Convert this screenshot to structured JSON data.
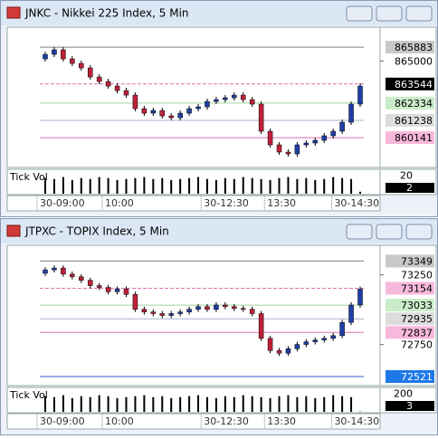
{
  "chart_data": [
    {
      "type": "candlestick",
      "title": "JNKC - Nikkei 225 Index, 5 Min",
      "open": [
        865137,
        865424,
        865711,
        865137,
        864850,
        864563,
        863989,
        863702,
        863415,
        863128,
        862841,
        861980,
        861693,
        861865,
        861521,
        861406,
        861693,
        861980,
        862095,
        862439,
        862554,
        862669,
        862841,
        862554,
        862267,
        860545,
        859684,
        859225,
        859110,
        859684,
        859799,
        859971,
        860258,
        860545,
        861119,
        862267
      ],
      "high": [
        865596,
        865883,
        865883,
        865309,
        865022,
        864735,
        864161,
        863874,
        863587,
        863300,
        863013,
        862152,
        862037,
        862037,
        861693,
        861865,
        862152,
        862267,
        862611,
        862726,
        862841,
        863013,
        863013,
        862726,
        862439,
        860717,
        859856,
        859397,
        859856,
        859971,
        860143,
        860430,
        860717,
        861291,
        862439,
        863587
      ],
      "low": [
        864965,
        865252,
        864965,
        864678,
        864391,
        863817,
        863530,
        863243,
        862956,
        862669,
        861808,
        861521,
        861521,
        861349,
        861234,
        861234,
        861521,
        861808,
        861923,
        862267,
        862382,
        862497,
        862382,
        862095,
        860373,
        859512,
        859053,
        858938,
        858938,
        859512,
        859627,
        859799,
        860086,
        860373,
        860947,
        862095
      ],
      "close": [
        865424,
        865711,
        865137,
        864850,
        864563,
        863989,
        863702,
        863415,
        863128,
        862841,
        861980,
        861693,
        861865,
        861521,
        861406,
        861693,
        861980,
        862095,
        862439,
        862554,
        862669,
        862841,
        862554,
        862267,
        860545,
        859684,
        859225,
        859110,
        859684,
        859799,
        859971,
        860258,
        860545,
        861119,
        862267,
        863415
      ],
      "up_color": "#1f3fa8",
      "down_color": "#c0203a",
      "ylim": [
        858250,
        867150
      ],
      "yticks": [
        865000
      ],
      "levels": [
        {
          "value": 865883,
          "color": "#808080",
          "label_bg": "#c8c8c8",
          "label_fg": "#000000"
        },
        {
          "value": 863544,
          "color": "#e070b0",
          "label_bg": "#000000",
          "label_fg": "#ffffff",
          "dashed": true
        },
        {
          "value": 862334,
          "color": "#a0d0a0",
          "label_bg": "#c8ecc8",
          "label_fg": "#000000"
        },
        {
          "value": 861238,
          "color": "#a8b4d0",
          "label_bg": "#dcdcdc",
          "label_fg": "#000000"
        },
        {
          "value": 860141,
          "color": "#e070b0",
          "label_bg": "#f8b8dc",
          "label_fg": "#000000"
        }
      ],
      "volume": {
        "label": "Tick Vol",
        "values": [
          16,
          15,
          17,
          14,
          16,
          15,
          17,
          16,
          14,
          15,
          16,
          17,
          15,
          16,
          14,
          15,
          16,
          17,
          15,
          14,
          16,
          15,
          17,
          16,
          15,
          14,
          16,
          17,
          15,
          16,
          14,
          15,
          17,
          16,
          15,
          2
        ],
        "ylim": [
          0,
          24
        ],
        "yticks": [
          20
        ],
        "last": 2
      },
      "x_labels": [
        "30-09:00",
        "10:00",
        "30-12:30",
        "13:30",
        "30-14:30"
      ]
    },
    {
      "type": "candlestick",
      "title": "JTPXC - TOPIX Index, 5 Min",
      "open": [
        73261,
        73286,
        73299,
        73255,
        73236,
        73211,
        73173,
        73160,
        73129,
        73148,
        73110,
        73003,
        72984,
        72972,
        72959,
        72972,
        72984,
        73003,
        73022,
        73003,
        73034,
        73022,
        73009,
        73003,
        72972,
        72795,
        72707,
        72688,
        72720,
        72751,
        72770,
        72783,
        72795,
        72814,
        72909,
        73034
      ],
      "high": [
        73305,
        73318,
        73318,
        73274,
        73255,
        73230,
        73192,
        73179,
        73167,
        73167,
        73129,
        73022,
        73003,
        72991,
        72991,
        73003,
        73022,
        73041,
        73041,
        73053,
        73053,
        73041,
        73028,
        73022,
        72991,
        72814,
        72726,
        72739,
        72770,
        72789,
        72802,
        72814,
        72833,
        72928,
        73053,
        73167
      ],
      "low": [
        73242,
        73267,
        73236,
        73217,
        73192,
        73154,
        73141,
        73110,
        73110,
        73091,
        72984,
        72965,
        72953,
        72940,
        72940,
        72953,
        72965,
        72984,
        72984,
        72984,
        73003,
        72990,
        72984,
        72953,
        72776,
        72688,
        72669,
        72669,
        72701,
        72732,
        72751,
        72764,
        72776,
        72795,
        72890,
        73015
      ],
      "close": [
        73286,
        73299,
        73255,
        73236,
        73211,
        73173,
        73160,
        73129,
        73148,
        73110,
        73003,
        72984,
        72972,
        72959,
        72972,
        72984,
        73003,
        73022,
        73003,
        73034,
        73022,
        73009,
        73003,
        72972,
        72795,
        72707,
        72688,
        72720,
        72751,
        72770,
        72783,
        72795,
        72814,
        72909,
        73034,
        73148
      ],
      "up_color": "#1f3fa8",
      "down_color": "#c0203a",
      "ylim": [
        72456,
        73462
      ],
      "yticks": [
        73250,
        72750
      ],
      "levels": [
        {
          "value": 73349,
          "color": "#808080",
          "label_bg": "#c8c8c8",
          "label_fg": "#000000"
        },
        {
          "value": 73154,
          "color": "#e070b0",
          "label_bg": "#f8b8dc",
          "label_fg": "#000000",
          "dashed": true
        },
        {
          "value": 73033,
          "color": "#a0d0a0",
          "label_bg": "#c8ecc8",
          "label_fg": "#000000"
        },
        {
          "value": 72935,
          "color": "#a8b4d0",
          "label_bg": "#dcdcdc",
          "label_fg": "#000000"
        },
        {
          "value": 72837,
          "color": "#e070b0",
          "label_bg": "#f8b8dc",
          "label_fg": "#000000"
        },
        {
          "value": 72521,
          "color": "#3060c0",
          "label_bg": "#1e78e6",
          "label_fg": "#ffffff"
        }
      ],
      "volume": {
        "label": "Tick Vol",
        "values": [
          160,
          150,
          170,
          140,
          160,
          150,
          170,
          160,
          140,
          150,
          160,
          170,
          150,
          160,
          140,
          150,
          160,
          170,
          150,
          140,
          160,
          150,
          170,
          160,
          150,
          140,
          160,
          170,
          150,
          160,
          140,
          150,
          170,
          160,
          150,
          3
        ],
        "ylim": [
          0,
          240
        ],
        "yticks": [
          200
        ],
        "last": 3
      },
      "x_labels": [
        "30-09:00",
        "10:00",
        "30-12:30",
        "13:30",
        "30-14:30"
      ]
    }
  ]
}
